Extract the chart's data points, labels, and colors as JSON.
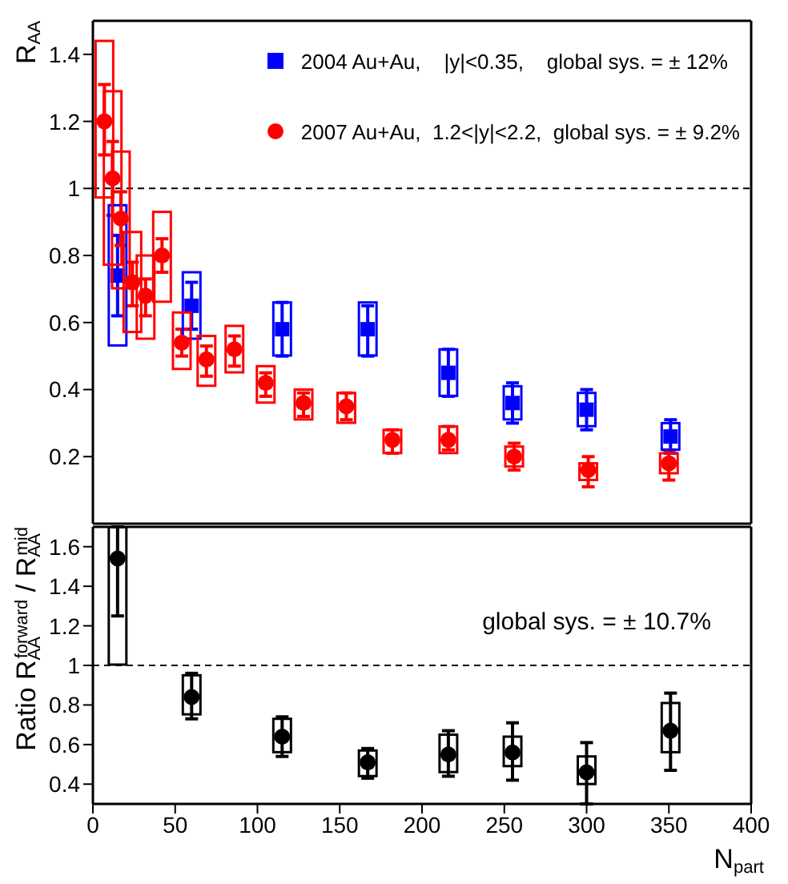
{
  "chart_data": [
    {
      "type": "scatter",
      "ylabel": "R$_{AA}$",
      "xlim": [
        0,
        400
      ],
      "xticks": [
        0,
        50,
        100,
        150,
        200,
        250,
        300,
        350,
        400
      ],
      "ylim": [
        0,
        1.5
      ],
      "yticks": [
        0.2,
        0.4,
        0.6,
        0.8,
        1,
        1.2,
        1.4
      ],
      "tick_labels": "y",
      "grid": false,
      "legend": "top right",
      "ref_lines": [
        {
          "axis": "y",
          "value": 1,
          "line_style": "dashed",
          "color": "#000000"
        }
      ],
      "series": [
        {
          "name": "2004 Au+Au,    |y|<0.35,    global sys. = ± 12%",
          "type": "scatter",
          "marker": "square",
          "color": "#0000ff",
          "x": [
            15,
            60,
            115,
            167,
            216,
            255,
            300,
            351
          ],
          "values": [
            0.74,
            0.65,
            0.58,
            0.58,
            0.45,
            0.36,
            0.34,
            0.26
          ],
          "errors": [
            [
              0.62,
              0.86
            ],
            [
              0.58,
              0.72
            ],
            [
              0.5,
              0.66
            ],
            [
              0.5,
              0.65
            ],
            [
              0.38,
              0.52
            ],
            [
              0.3,
              0.42
            ],
            [
              0.28,
              0.4
            ],
            [
              0.21,
              0.31
            ]
          ]
        },
        {
          "type": "bar",
          "color": "#0000ff",
          "x": [
            15,
            60,
            115,
            167,
            216,
            255,
            300,
            351
          ],
          "base": [
            0.53,
            0.55,
            0.5,
            0.5,
            0.38,
            0.31,
            0.29,
            0.22
          ],
          "values": [
            0.42,
            0.2,
            0.16,
            0.16,
            0.14,
            0.1,
            0.1,
            0.08
          ]
        },
        {
          "name": "2007 Au+Au,  1.2<|y|<2.2,  global sys. = ± 9.2%",
          "type": "scatter",
          "marker": "circle",
          "color": "#ff0000",
          "x": [
            7,
            12,
            17,
            24,
            32,
            42,
            54,
            69,
            86,
            105,
            128,
            154,
            182,
            216,
            256,
            301,
            350
          ],
          "values": [
            1.2,
            1.03,
            0.91,
            0.72,
            0.68,
            0.8,
            0.54,
            0.49,
            0.52,
            0.42,
            0.36,
            0.35,
            0.25,
            0.25,
            0.2,
            0.16,
            0.18
          ],
          "errors": [
            [
              1.1,
              1.31
            ],
            [
              0.92,
              1.14
            ],
            [
              0.83,
              0.99
            ],
            [
              0.65,
              0.78
            ],
            [
              0.62,
              0.73
            ],
            [
              0.75,
              0.85
            ],
            [
              0.5,
              0.58
            ],
            [
              0.44,
              0.53
            ],
            [
              0.47,
              0.56
            ],
            [
              0.38,
              0.45
            ],
            [
              0.32,
              0.39
            ],
            [
              0.31,
              0.39
            ],
            [
              0.21,
              0.28
            ],
            [
              0.22,
              0.29
            ],
            [
              0.16,
              0.24
            ],
            [
              0.11,
              0.2
            ],
            [
              0.13,
              0.22
            ]
          ]
        },
        {
          "type": "bar",
          "color": "#ff0000",
          "x": [
            7,
            12,
            17,
            24,
            32,
            42,
            54,
            69,
            86,
            105,
            128,
            154,
            182,
            216,
            256,
            301,
            350
          ],
          "base": [
            0.97,
            0.77,
            0.7,
            0.57,
            0.55,
            0.66,
            0.46,
            0.41,
            0.45,
            0.36,
            0.31,
            0.3,
            0.21,
            0.21,
            0.17,
            0.13,
            0.15
          ],
          "values": [
            0.47,
            0.52,
            0.41,
            0.3,
            0.25,
            0.27,
            0.17,
            0.15,
            0.14,
            0.11,
            0.09,
            0.09,
            0.07,
            0.08,
            0.06,
            0.05,
            0.06
          ]
        }
      ]
    },
    {
      "type": "scatter",
      "ylabel": "Ratio R$_{AA}$$^{forward}$ / R$_{AA}$$^{mid}$",
      "xlabel": "N$_{part}$",
      "xlim": [
        0,
        400
      ],
      "xticks": [
        0,
        50,
        100,
        150,
        200,
        250,
        300,
        350,
        400
      ],
      "ylim": [
        0.3,
        1.7
      ],
      "yticks": [
        0.4,
        0.6,
        0.8,
        1,
        1.2,
        1.4,
        1.6
      ],
      "grid": false,
      "legend": false,
      "annotations": [
        "global sys. = ± 10.7%"
      ],
      "ref_lines": [
        {
          "axis": "y",
          "value": 1,
          "line_style": "dashed",
          "color": "#000000"
        }
      ],
      "series": [
        {
          "type": "scatter",
          "marker": "circle",
          "color": "#000000",
          "x": [
            15,
            60,
            115,
            167,
            216,
            255,
            300,
            351
          ],
          "values": [
            1.54,
            0.84,
            0.64,
            0.51,
            0.55,
            0.56,
            0.46,
            0.67
          ],
          "errors": [
            [
              1.25,
              1.7
            ],
            [
              0.73,
              0.96
            ],
            [
              0.54,
              0.74
            ],
            [
              0.43,
              0.58
            ],
            [
              0.44,
              0.67
            ],
            [
              0.42,
              0.71
            ],
            [
              0.3,
              0.61
            ],
            [
              0.47,
              0.86
            ]
          ]
        },
        {
          "type": "bar",
          "color": "#000000",
          "x": [
            15,
            60,
            115,
            167,
            216,
            255,
            300,
            351
          ],
          "base": [
            1.0,
            0.75,
            0.56,
            0.44,
            0.46,
            0.49,
            0.4,
            0.56
          ],
          "values": [
            0.7,
            0.2,
            0.17,
            0.13,
            0.19,
            0.15,
            0.14,
            0.25
          ]
        }
      ]
    }
  ]
}
